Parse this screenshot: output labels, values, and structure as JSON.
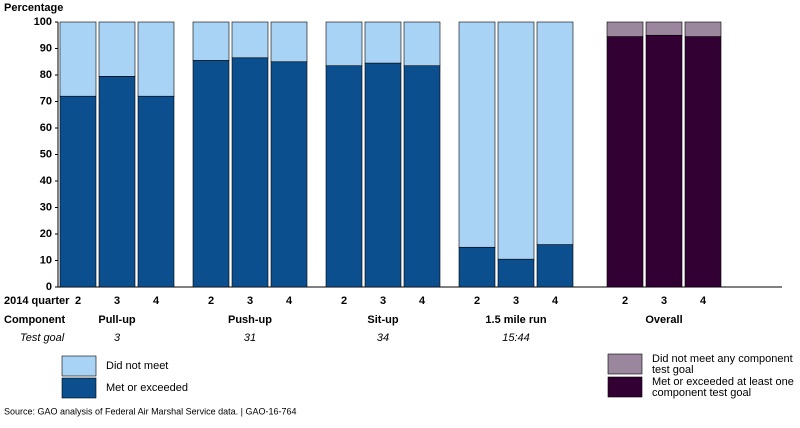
{
  "chart_data": {
    "type": "stacked-bar",
    "y_axis_label": "Percentage",
    "ylim": [
      0,
      100
    ],
    "yticks": [
      0,
      10,
      20,
      30,
      40,
      50,
      60,
      70,
      80,
      90,
      100
    ],
    "row_labels": {
      "quarter": "2014 quarter",
      "component": "Component",
      "test_goal": "Test goal"
    },
    "categories": [
      "2",
      "3",
      "4",
      "2",
      "3",
      "4",
      "2",
      "3",
      "4",
      "2",
      "3",
      "4",
      "2",
      "3",
      "4"
    ],
    "groups": [
      {
        "name": "Pull-up",
        "test_goal": "3"
      },
      {
        "name": "Push-up",
        "test_goal": "31"
      },
      {
        "name": "Sit-up",
        "test_goal": "34"
      },
      {
        "name": "1.5 mile run",
        "test_goal": "15:44"
      },
      {
        "name": "Overall"
      }
    ],
    "series": [
      {
        "name": "Met or exceeded",
        "color": "#0b4f8f",
        "values": [
          72,
          79.5,
          72,
          85.5,
          86.5,
          85,
          83.5,
          84.5,
          83.5,
          15,
          10.5,
          16,
          null,
          null,
          null
        ]
      },
      {
        "name": "Did not meet",
        "color": "#a9d3f5",
        "values": [
          28,
          20.5,
          28,
          14.5,
          13.5,
          15,
          16.5,
          15.5,
          16.5,
          85,
          89.5,
          84,
          null,
          null,
          null
        ]
      },
      {
        "name": "Met or exceeded at least one component test goal",
        "color": "#330033",
        "values": [
          null,
          null,
          null,
          null,
          null,
          null,
          null,
          null,
          null,
          null,
          null,
          null,
          94.5,
          95,
          94.5
        ]
      },
      {
        "name": "Did not meet any component test goal",
        "color": "#9a879d",
        "values": [
          null,
          null,
          null,
          null,
          null,
          null,
          null,
          null,
          null,
          null,
          null,
          null,
          5.5,
          5,
          5.5
        ]
      }
    ],
    "source": "Source: GAO analysis of Federal Air Marshal Service data.  |  GAO-16-764"
  }
}
